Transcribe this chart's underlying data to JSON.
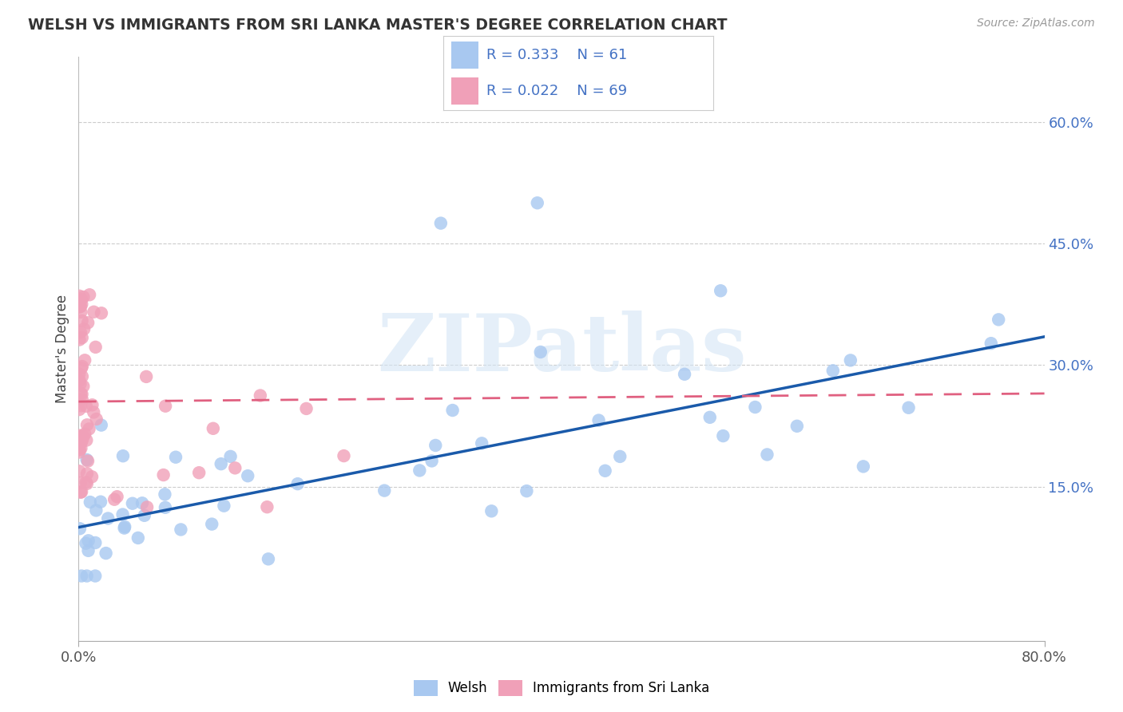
{
  "title": "WELSH VS IMMIGRANTS FROM SRI LANKA MASTER'S DEGREE CORRELATION CHART",
  "source": "Source: ZipAtlas.com",
  "ylabel": "Master's Degree",
  "watermark": "ZIPatlas",
  "xlim": [
    0.0,
    0.8
  ],
  "ylim": [
    -0.04,
    0.68
  ],
  "blue_color": "#a8c8f0",
  "blue_line_color": "#1a5aaa",
  "pink_color": "#f0a0b8",
  "pink_line_color": "#e06080",
  "yticks": [
    0.15,
    0.3,
    0.45,
    0.6
  ],
  "xtick_left": "0.0%",
  "xtick_right": "80.0%",
  "blue_line_x0": 0.0,
  "blue_line_y0": 0.1,
  "blue_line_x1": 0.8,
  "blue_line_y1": 0.335,
  "pink_line_x0": 0.0,
  "pink_line_y0": 0.255,
  "pink_line_x1": 0.8,
  "pink_line_y1": 0.265,
  "legend_text": [
    [
      "R = 0.333",
      "N = 61"
    ],
    [
      "R = 0.022",
      "N = 69"
    ]
  ],
  "bottom_legend": [
    "Welsh",
    "Immigrants from Sri Lanka"
  ]
}
